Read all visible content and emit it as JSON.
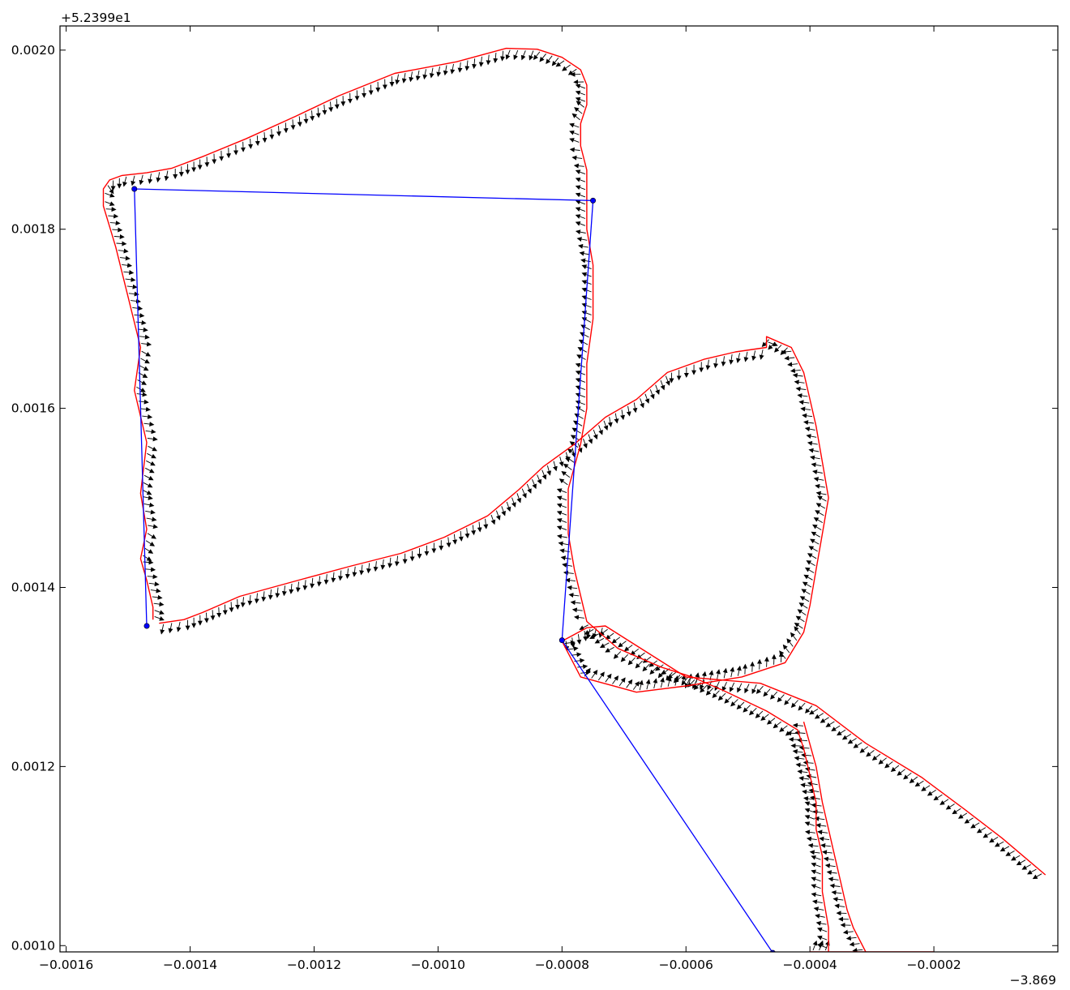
{
  "chart_data": {
    "type": "line",
    "title": "",
    "xlabel": "",
    "ylabel": "",
    "x_offset_label": "−3.869",
    "y_offset_label": "+5.2399e1",
    "xlim": [
      -0.00161,
      0.0
    ],
    "ylim": [
      0.000993,
      0.002027
    ],
    "x_ticks": [
      -0.0016,
      -0.0014,
      -0.0012,
      -0.001,
      -0.0008,
      -0.0006,
      -0.0004,
      -0.0002
    ],
    "x_tick_labels": [
      "−0.0016",
      "−0.0014",
      "−0.0012",
      "−0.0010",
      "−0.0008",
      "−0.0006",
      "−0.0004",
      "−0.0002"
    ],
    "y_ticks": [
      0.001,
      0.0012,
      0.0014,
      0.0016,
      0.0018,
      0.002
    ],
    "y_tick_labels": [
      "0.0010",
      "0.0012",
      "0.0014",
      "0.0016",
      "0.0018",
      "0.0020"
    ],
    "grid": false,
    "series": [
      {
        "type": "line-with-markers",
        "color": "#0000ff",
        "x": [
          -0.00147,
          -0.00149,
          -0.00075,
          -0.0008,
          -0.00046
        ],
        "y": [
          0.001357,
          0.001845,
          0.001832,
          0.001341,
          0.000992
        ]
      },
      {
        "type": "line",
        "color": "#ff0000",
        "x": [
          -0.00146,
          -0.00146,
          -0.00147,
          -0.00148,
          -0.00147,
          -0.00148,
          -0.00147,
          -0.00149,
          -0.00148,
          -0.0015,
          -0.00152,
          -0.00153,
          -0.00154,
          -0.00154,
          -0.00153,
          -0.00151,
          -0.00147,
          -0.00143,
          -0.00138,
          -0.00131,
          -0.00123,
          -0.00116,
          -0.00107,
          -0.00097,
          -0.00089,
          -0.00084,
          -0.0008,
          -0.00077,
          -0.00076,
          -0.00076,
          -0.00077,
          -0.00077,
          -0.00076,
          -0.00076,
          -0.00076,
          -0.00075,
          -0.00075,
          -0.00076,
          -0.00076,
          -0.00077,
          -0.00079,
          -0.00079,
          -0.00078,
          -0.00076,
          -0.00071,
          -0.00064,
          -0.00059,
          -0.00054,
          -0.00047,
          -0.00042,
          -0.00041,
          -0.0004,
          -0.00039,
          -0.00039,
          -0.00038,
          -0.00038,
          -0.00037,
          -0.00037,
          -0.00038,
          -0.00038,
          -0.00039,
          -0.0004,
          -0.0004,
          -0.0004,
          -0.00039,
          -0.00037,
          -0.00035,
          -0.00032,
          -0.00027,
          -0.00023,
          -0.00021,
          -0.0002,
          -0.0002
        ],
        "y": [
          0.001364,
          0.001378,
          0.001408,
          0.001432,
          0.001465,
          0.001505,
          0.001562,
          0.00162,
          0.001668,
          0.001724,
          0.00178,
          0.001803,
          0.001826,
          0.001845,
          0.001855,
          0.00186,
          0.001863,
          0.001868,
          0.001881,
          0.001901,
          0.001926,
          0.001949,
          0.001974,
          0.001987,
          0.002002,
          0.002001,
          0.001992,
          0.001978,
          0.001961,
          0.001939,
          0.001918,
          0.001893,
          0.001866,
          0.00184,
          0.0018,
          0.00176,
          0.0017,
          0.00165,
          0.0016,
          0.00156,
          0.00151,
          0.00146,
          0.00142,
          0.001362,
          0.001332,
          0.001311,
          0.0013,
          0.001285,
          0.001262,
          0.001241,
          0.00122,
          0.00119,
          0.00116,
          0.00113,
          0.0011,
          0.00106,
          0.00102,
          0.000993,
          0.000993,
          0.000993,
          0.000993,
          0.000993,
          0.000993,
          0.000993,
          0.000993,
          0.000993,
          0.000993,
          0.000993,
          0.000993,
          0.000993,
          0.000993,
          0.000993,
          0.000993
        ]
      },
      {
        "type": "line",
        "color": "#ff0000",
        "x": [
          -0.00145,
          -0.00141,
          -0.00138,
          -0.00132,
          -0.00122,
          -0.00114,
          -0.00106,
          -0.00099,
          -0.00092,
          -0.00087,
          -0.00083,
          -0.00078,
          -0.00073,
          -0.00068,
          -0.00063,
          -0.00057,
          -0.00052,
          -0.00047,
          -0.00047,
          -0.00043,
          -0.00041,
          -0.0004,
          -0.00039,
          -0.00038,
          -0.00037,
          -0.00038,
          -0.00039,
          -0.0004,
          -0.00041,
          -0.00044,
          -0.00051,
          -0.0006,
          -0.00068,
          -0.00077,
          -0.0008,
          -0.00076,
          -0.00073,
          -0.0006,
          -0.00048,
          -0.00039,
          -0.00031,
          -0.00022,
          -0.00015,
          -9e-05,
          -2e-05
        ],
        "y": [
          0.00136,
          0.001364,
          0.001372,
          0.00139,
          0.001409,
          0.001424,
          0.001438,
          0.001456,
          0.00148,
          0.001509,
          0.001535,
          0.00156,
          0.00159,
          0.00161,
          0.00164,
          0.001655,
          0.001663,
          0.001668,
          0.00168,
          0.001668,
          0.00164,
          0.00161,
          0.00158,
          0.00154,
          0.0015,
          0.00146,
          0.00142,
          0.00138,
          0.00135,
          0.001316,
          0.0013,
          0.00129,
          0.001283,
          0.0013,
          0.00134,
          0.001355,
          0.001357,
          0.0013,
          0.001293,
          0.001268,
          0.001226,
          0.001188,
          0.001152,
          0.00112,
          0.001079
        ]
      },
      {
        "type": "line",
        "color": "#ff0000",
        "x": [
          -0.00041,
          -0.00039,
          -0.00038,
          -0.00037,
          -0.00036,
          -0.00035,
          -0.00034,
          -0.00033,
          -0.00031
        ],
        "y": [
          0.00125,
          0.0012,
          0.00116,
          0.00113,
          0.0011,
          0.00107,
          0.00104,
          0.00102,
          0.000993
        ]
      }
    ],
    "quiver": {
      "color": "#000000",
      "description": "small black arrows placed along the red outlines indicating local direction",
      "on_series": [
        1,
        2,
        3
      ]
    }
  }
}
